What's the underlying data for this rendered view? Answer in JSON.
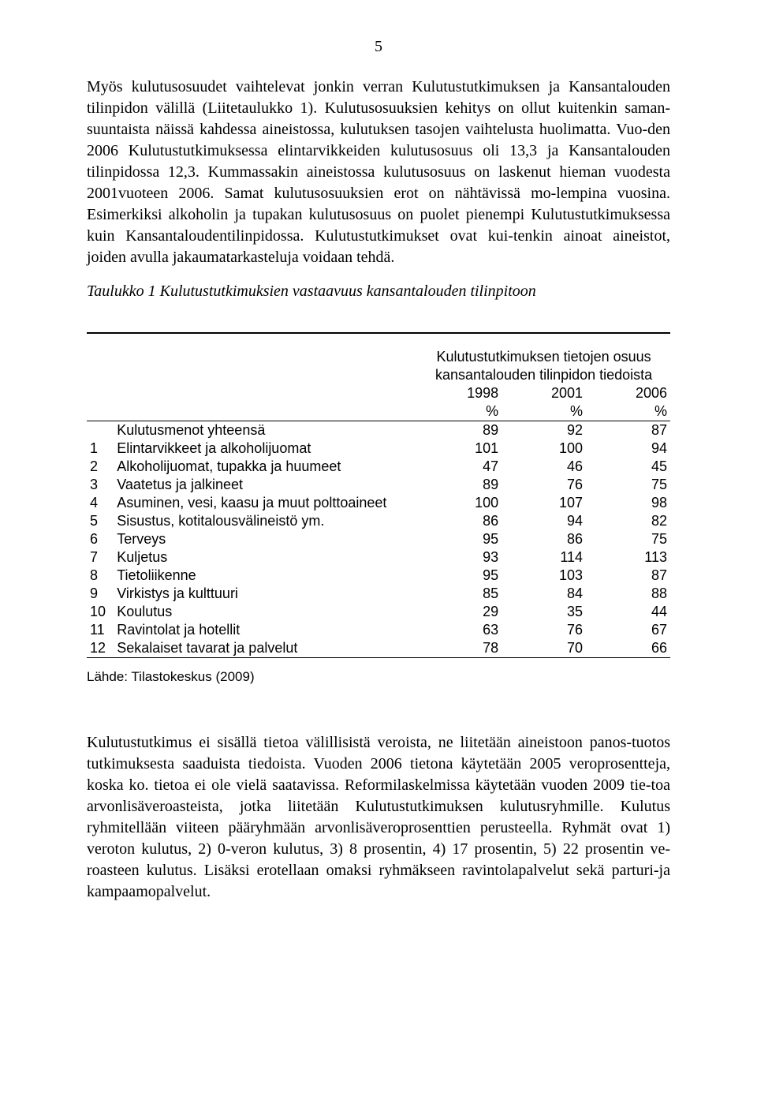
{
  "page_number": "5",
  "paragraph1": "Myös kulutusosuudet vaihtelevat jonkin verran Kulutustutkimuksen ja Kansantalouden tilinpidon välillä (Liitetaulukko 1). Kulutusosuuksien kehitys on ollut kuitenkin saman-suuntaista näissä kahdessa aineistossa, kulutuksen tasojen vaihtelusta huolimatta. Vuo-den 2006 Kulutustutkimuksessa elintarvikkeiden kulutusosuus oli 13,3 ja Kansantalouden tilinpidossa 12,3. Kummassakin aineistossa kulutusosuus on laskenut hieman vuodesta 2001vuoteen 2006. Samat kulutusosuuksien erot on nähtävissä mo-lempina vuosina. Esimerkiksi alkoholin ja tupakan kulutusosuus on puolet pienempi Kulutustutkimuksessa kuin Kansantaloudentilinpidossa. Kulutustutkimukset ovat kui-tenkin ainoat aineistot, joiden avulla jakaumatarkasteluja voidaan tehdä.",
  "caption": "Taulukko 1 Kulutustutkimuksien vastaavuus kansantalouden tilinpitoon",
  "table": {
    "header_title_line1": "Kulutustutkimuksen tietojen osuus",
    "header_title_line2": "kansantalouden tilinpidon tiedoista",
    "years": [
      "1998",
      "2001",
      "2006"
    ],
    "pct": "%",
    "total_label": "Kulutusmenot yhteensä",
    "total_values": [
      "89",
      "92",
      "87"
    ],
    "rows": [
      {
        "idx": "1",
        "label": "Elintarvikkeet ja alkoholijuomat",
        "v": [
          "101",
          "100",
          "94"
        ]
      },
      {
        "idx": "2",
        "label": "Alkoholijuomat, tupakka ja huumeet",
        "v": [
          "47",
          "46",
          "45"
        ]
      },
      {
        "idx": "3",
        "label": "Vaatetus ja jalkineet",
        "v": [
          "89",
          "76",
          "75"
        ]
      },
      {
        "idx": "4",
        "label": "Asuminen, vesi, kaasu ja muut polttoaineet",
        "v": [
          "100",
          "107",
          "98"
        ]
      },
      {
        "idx": "5",
        "label": "Sisustus, kotitalousvälineistö ym.",
        "v": [
          "86",
          "94",
          "82"
        ]
      },
      {
        "idx": "6",
        "label": "Terveys",
        "v": [
          "95",
          "86",
          "75"
        ]
      },
      {
        "idx": "7",
        "label": "Kuljetus",
        "v": [
          "93",
          "114",
          "113"
        ]
      },
      {
        "idx": "8",
        "label": "Tietoliikenne",
        "v": [
          "95",
          "103",
          "87"
        ]
      },
      {
        "idx": "9",
        "label": "Virkistys ja kulttuuri",
        "v": [
          "85",
          "84",
          "88"
        ]
      },
      {
        "idx": "10",
        "label": "Koulutus",
        "v": [
          "29",
          "35",
          "44"
        ]
      },
      {
        "idx": "11",
        "label": "Ravintolat ja hotellit",
        "v": [
          "63",
          "76",
          "67"
        ]
      },
      {
        "idx": "12",
        "label": "Sekalaiset tavarat ja palvelut",
        "v": [
          "78",
          "70",
          "66"
        ]
      }
    ]
  },
  "source": "Lähde: Tilastokeskus (2009)",
  "paragraph2": "Kulutustutkimus ei sisällä tietoa välillisistä veroista, ne liitetään aineistoon panos-tuotos tutkimuksesta saaduista tiedoista. Vuoden 2006 tietona käytetään 2005 veroprosentteja, koska ko. tietoa ei ole vielä saatavissa. Reformilaskelmissa käytetään vuoden 2009 tie-toa arvonlisäveroasteista, jotka liitetään Kulutustutkimuksen kulutusryhmille. Kulutus ryhmitellään viiteen pääryhmään arvonlisäveroprosenttien perusteella. Ryhmät ovat 1) veroton kulutus, 2) 0-veron kulutus, 3) 8 prosentin, 4) 17 prosentin, 5) 22 prosentin ve-roasteen kulutus. Lisäksi erotellaan omaksi ryhmäkseen ravintolapalvelut sekä parturi-ja kampaamopalvelut."
}
